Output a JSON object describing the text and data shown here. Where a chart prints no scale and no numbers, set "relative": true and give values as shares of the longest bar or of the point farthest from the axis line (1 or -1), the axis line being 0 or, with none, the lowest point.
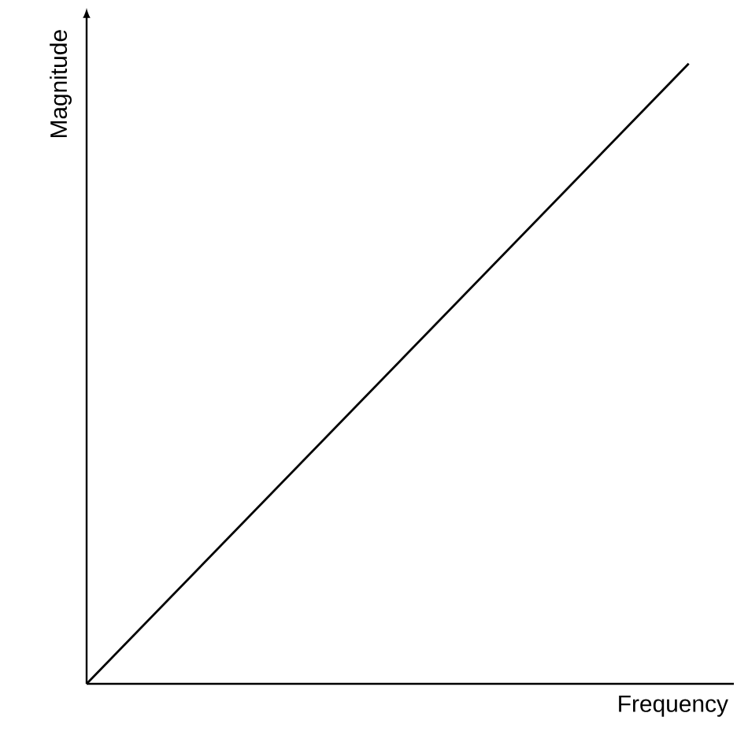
{
  "chart_data": {
    "type": "line",
    "relative": true,
    "xlabel": "Frequency",
    "ylabel": "Magnitude",
    "categories": [
      null,
      null
    ],
    "series": [
      {
        "color": "#000000",
        "values": [
          0,
          1
        ]
      }
    ]
  }
}
